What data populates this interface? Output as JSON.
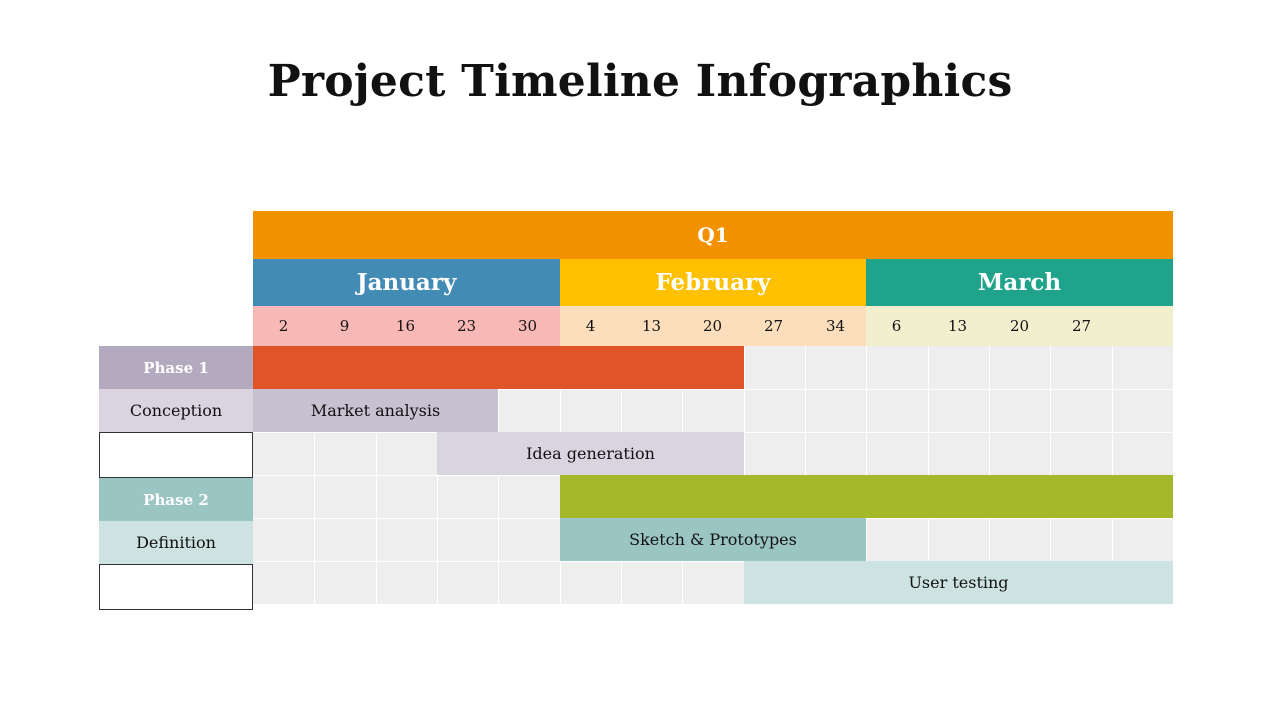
{
  "title": "Project Timeline Infographics",
  "quarter": {
    "label": "Q1",
    "color": "#F39200"
  },
  "months": [
    {
      "label": "January",
      "color": "#428BB4",
      "day_bg": "#F7B8B6",
      "days": [
        "2",
        "9",
        "16",
        "23",
        "30"
      ]
    },
    {
      "label": "February",
      "color": "#FFC000",
      "day_bg": "#FCDDBC",
      "days": [
        "4",
        "13",
        "20",
        "27",
        "34"
      ]
    },
    {
      "label": "March",
      "color": "#1FA38A",
      "day_bg": "#F2EFCF",
      "days": [
        "6",
        "13",
        "20",
        "27"
      ]
    }
  ],
  "rows": {
    "phase1": {
      "label": "Phase 1",
      "color": "#B3AAC0"
    },
    "conception": {
      "label": "Conception",
      "color": "#DAD4E0"
    },
    "phase2": {
      "label": "Phase 2",
      "color": "#9AC5C3"
    },
    "definition": {
      "label": "Definition",
      "color": "#CCE3E1"
    }
  },
  "tasks": {
    "phase1_bar": {
      "label": "",
      "color": "#E05527",
      "start_week": 0,
      "end_week": 8
    },
    "market_analysis": {
      "label": "Market analysis",
      "color": "#C7C1D2",
      "start_week": 0,
      "end_week": 4
    },
    "idea_generation": {
      "label": "Idea generation",
      "color": "#DAD4E0",
      "start_week": 3,
      "end_week": 8
    },
    "phase2_bar": {
      "label": "",
      "color": "#A4B829",
      "start_week": 5,
      "end_week": 15
    },
    "sketch_prototypes": {
      "label": "Sketch & Prototypes",
      "color": "#9AC5C3",
      "start_week": 5,
      "end_week": 10
    },
    "user_testing": {
      "label": "User testing",
      "color": "#CCE3E1",
      "start_week": 8,
      "end_week": 15
    }
  }
}
